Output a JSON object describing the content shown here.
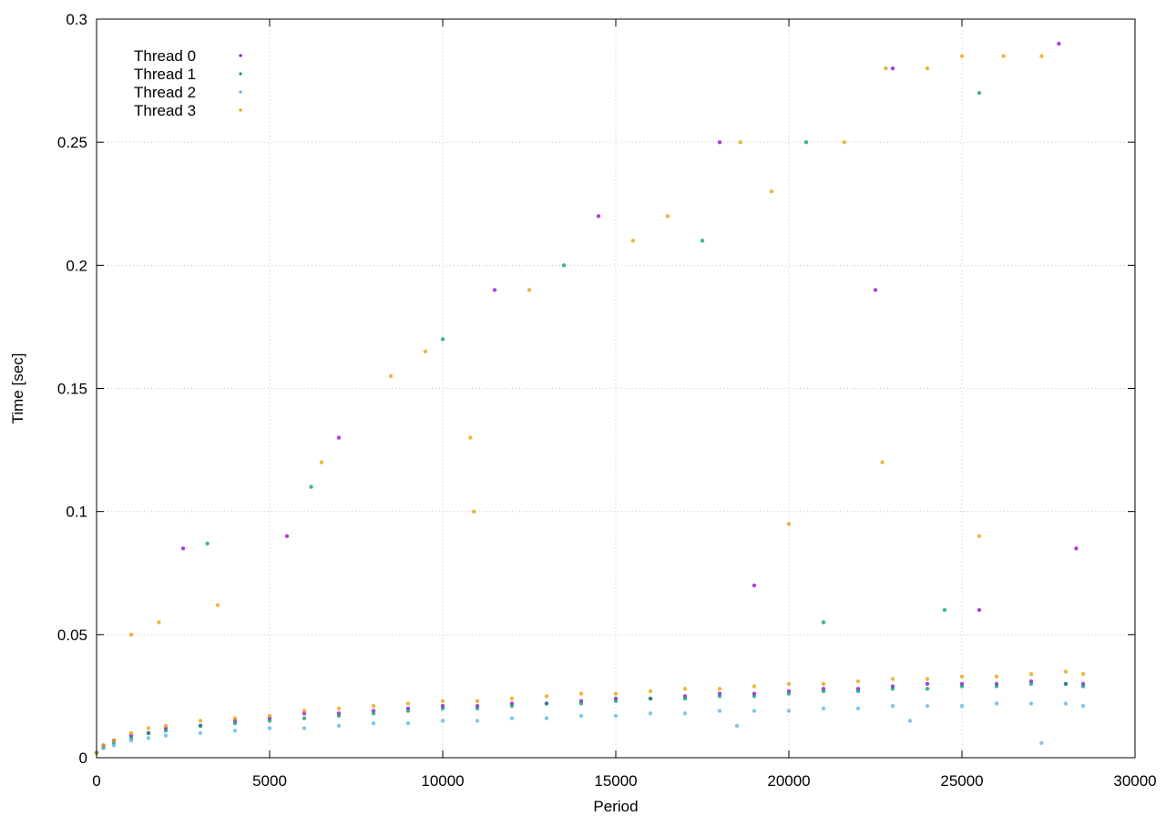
{
  "chart_data": {
    "type": "scatter",
    "title": "",
    "xlabel": "Period",
    "ylabel": "Time [sec]",
    "xlim": [
      0,
      30000
    ],
    "ylim": [
      0,
      0.3
    ],
    "xticks": [
      0,
      5000,
      10000,
      15000,
      20000,
      25000,
      30000
    ],
    "yticks": [
      0,
      0.05,
      0.1,
      0.15,
      0.2,
      0.25,
      0.3
    ],
    "xtick_labels": [
      "0",
      "5000",
      "10000",
      "15000",
      "20000",
      "25000",
      "30000"
    ],
    "ytick_labels": [
      "0",
      "0.05",
      "0.1",
      "0.15",
      "0.2",
      "0.25",
      "0.3"
    ],
    "grid": true,
    "legend_position": "top-left",
    "series": [
      {
        "name": "Thread 0",
        "color": "#9400d3",
        "points": [
          [
            0,
            0.002
          ],
          [
            200,
            0.005
          ],
          [
            500,
            0.007
          ],
          [
            1000,
            0.009
          ],
          [
            1500,
            0.01
          ],
          [
            2000,
            0.012
          ],
          [
            3000,
            0.013
          ],
          [
            4000,
            0.015
          ],
          [
            5000,
            0.016
          ],
          [
            6000,
            0.018
          ],
          [
            7000,
            0.018
          ],
          [
            8000,
            0.019
          ],
          [
            9000,
            0.02
          ],
          [
            10000,
            0.021
          ],
          [
            11000,
            0.021
          ],
          [
            12000,
            0.022
          ],
          [
            13000,
            0.022
          ],
          [
            14000,
            0.023
          ],
          [
            15000,
            0.024
          ],
          [
            16000,
            0.024
          ],
          [
            17000,
            0.025
          ],
          [
            18000,
            0.026
          ],
          [
            19000,
            0.026
          ],
          [
            20000,
            0.027
          ],
          [
            21000,
            0.028
          ],
          [
            22000,
            0.028
          ],
          [
            23000,
            0.029
          ],
          [
            24000,
            0.03
          ],
          [
            25000,
            0.03
          ],
          [
            26000,
            0.03
          ],
          [
            27000,
            0.031
          ],
          [
            28000,
            0.03
          ],
          [
            28500,
            0.03
          ],
          [
            2500,
            0.085
          ],
          [
            5500,
            0.09
          ],
          [
            7000,
            0.13
          ],
          [
            11500,
            0.19
          ],
          [
            14500,
            0.22
          ],
          [
            18000,
            0.25
          ],
          [
            23000,
            0.28
          ],
          [
            27800,
            0.29
          ],
          [
            22500,
            0.19
          ],
          [
            25500,
            0.06
          ],
          [
            19000,
            0.07
          ],
          [
            28300,
            0.085
          ]
        ]
      },
      {
        "name": "Thread 1",
        "color": "#009e73",
        "points": [
          [
            0,
            0.002
          ],
          [
            200,
            0.004
          ],
          [
            500,
            0.006
          ],
          [
            1000,
            0.008
          ],
          [
            1500,
            0.01
          ],
          [
            2000,
            0.011
          ],
          [
            3000,
            0.013
          ],
          [
            4000,
            0.014
          ],
          [
            5000,
            0.015
          ],
          [
            6000,
            0.016
          ],
          [
            7000,
            0.017
          ],
          [
            8000,
            0.018
          ],
          [
            9000,
            0.019
          ],
          [
            10000,
            0.02
          ],
          [
            11000,
            0.02
          ],
          [
            12000,
            0.021
          ],
          [
            13000,
            0.022
          ],
          [
            14000,
            0.022
          ],
          [
            15000,
            0.023
          ],
          [
            16000,
            0.024
          ],
          [
            17000,
            0.024
          ],
          [
            18000,
            0.025
          ],
          [
            19000,
            0.025
          ],
          [
            20000,
            0.026
          ],
          [
            21000,
            0.027
          ],
          [
            22000,
            0.027
          ],
          [
            23000,
            0.028
          ],
          [
            24000,
            0.028
          ],
          [
            25000,
            0.029
          ],
          [
            26000,
            0.029
          ],
          [
            27000,
            0.03
          ],
          [
            28000,
            0.03
          ],
          [
            28500,
            0.029
          ],
          [
            3200,
            0.087
          ],
          [
            6200,
            0.11
          ],
          [
            10000,
            0.17
          ],
          [
            13500,
            0.2
          ],
          [
            17500,
            0.21
          ],
          [
            20500,
            0.25
          ],
          [
            25500,
            0.27
          ],
          [
            24500,
            0.06
          ],
          [
            21000,
            0.055
          ]
        ]
      },
      {
        "name": "Thread 2",
        "color": "#56b4e9",
        "points": [
          [
            0,
            0.002
          ],
          [
            200,
            0.004
          ],
          [
            500,
            0.005
          ],
          [
            1000,
            0.007
          ],
          [
            1500,
            0.008
          ],
          [
            2000,
            0.009
          ],
          [
            3000,
            0.01
          ],
          [
            4000,
            0.011
          ],
          [
            5000,
            0.012
          ],
          [
            6000,
            0.012
          ],
          [
            7000,
            0.013
          ],
          [
            8000,
            0.014
          ],
          [
            9000,
            0.014
          ],
          [
            10000,
            0.015
          ],
          [
            11000,
            0.015
          ],
          [
            12000,
            0.016
          ],
          [
            13000,
            0.016
          ],
          [
            14000,
            0.017
          ],
          [
            15000,
            0.017
          ],
          [
            16000,
            0.018
          ],
          [
            17000,
            0.018
          ],
          [
            18000,
            0.019
          ],
          [
            19000,
            0.019
          ],
          [
            20000,
            0.019
          ],
          [
            21000,
            0.02
          ],
          [
            22000,
            0.02
          ],
          [
            23000,
            0.021
          ],
          [
            24000,
            0.021
          ],
          [
            25000,
            0.021
          ],
          [
            26000,
            0.022
          ],
          [
            27000,
            0.022
          ],
          [
            28000,
            0.022
          ],
          [
            28500,
            0.021
          ],
          [
            27300,
            0.006
          ],
          [
            23500,
            0.015
          ],
          [
            18500,
            0.013
          ]
        ]
      },
      {
        "name": "Thread 3",
        "color": "#e69f00",
        "points": [
          [
            0,
            0.002
          ],
          [
            200,
            0.005
          ],
          [
            500,
            0.007
          ],
          [
            1000,
            0.01
          ],
          [
            1500,
            0.012
          ],
          [
            2000,
            0.013
          ],
          [
            3000,
            0.015
          ],
          [
            4000,
            0.016
          ],
          [
            5000,
            0.017
          ],
          [
            6000,
            0.019
          ],
          [
            7000,
            0.02
          ],
          [
            8000,
            0.021
          ],
          [
            9000,
            0.022
          ],
          [
            10000,
            0.023
          ],
          [
            11000,
            0.023
          ],
          [
            12000,
            0.024
          ],
          [
            13000,
            0.025
          ],
          [
            14000,
            0.026
          ],
          [
            15000,
            0.026
          ],
          [
            16000,
            0.027
          ],
          [
            17000,
            0.028
          ],
          [
            18000,
            0.028
          ],
          [
            19000,
            0.029
          ],
          [
            20000,
            0.03
          ],
          [
            21000,
            0.03
          ],
          [
            22000,
            0.031
          ],
          [
            23000,
            0.032
          ],
          [
            24000,
            0.032
          ],
          [
            25000,
            0.033
          ],
          [
            26000,
            0.033
          ],
          [
            27000,
            0.034
          ],
          [
            28000,
            0.035
          ],
          [
            28500,
            0.034
          ],
          [
            1000,
            0.05
          ],
          [
            1800,
            0.055
          ],
          [
            3500,
            0.062
          ],
          [
            6500,
            0.12
          ],
          [
            8500,
            0.155
          ],
          [
            9500,
            0.165
          ],
          [
            10800,
            0.13
          ],
          [
            10900,
            0.1
          ],
          [
            12500,
            0.19
          ],
          [
            15500,
            0.21
          ],
          [
            16500,
            0.22
          ],
          [
            18600,
            0.25
          ],
          [
            19500,
            0.23
          ],
          [
            20000,
            0.095
          ],
          [
            21600,
            0.25
          ],
          [
            22700,
            0.12
          ],
          [
            22800,
            0.28
          ],
          [
            24000,
            0.28
          ],
          [
            25000,
            0.285
          ],
          [
            25500,
            0.09
          ],
          [
            26200,
            0.285
          ],
          [
            27300,
            0.285
          ]
        ]
      }
    ]
  }
}
